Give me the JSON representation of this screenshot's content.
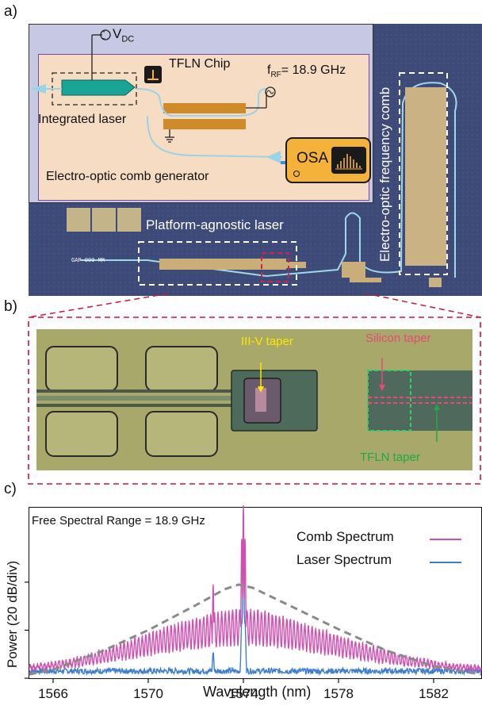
{
  "panel_a": {
    "letter": "a)",
    "v_dc": "V",
    "v_dc_sub": "DC",
    "tfln_chip": "TFLN Chip",
    "f_rf": "f",
    "f_rf_sub": "RF",
    "f_rf_value": "= 18.9 GHz",
    "integrated_laser": "Integrated laser",
    "osa": "OSA",
    "eo_comb_generator": "Electro-optic comb generator",
    "eo_frequency_comb": "Electro-optic frequency comb",
    "platform_agnostic_laser": "Platform-agnostic laser",
    "chip_id": "GAP-000 MM"
  },
  "panel_b": {
    "letter": "b)",
    "iii_v_taper": "III-V taper",
    "silicon_taper": "Silicon taper",
    "tfln_taper": "TFLN taper"
  },
  "panel_c": {
    "letter": "c)",
    "annotation": "Free Spectral Range = 18.9 GHz"
  },
  "colors": {
    "comb": "#d24fb0",
    "laser": "#3f7fd0",
    "envelope": "#8a8a8a",
    "tfln_taper": "#1fa84a",
    "silicon_taper": "#e8487a",
    "iii_v_taper": "#ffe600",
    "osa_box": "#f5b23a",
    "crop_lines": "#c8173f"
  },
  "chart_data": {
    "type": "line",
    "title": "",
    "xlabel": "Wavelength (nm)",
    "ylabel": "Power (20 dB/div)",
    "xlim": [
      1565,
      1584
    ],
    "ylim": [
      0,
      3.55
    ],
    "x_ticks": [
      1566,
      1570,
      1574,
      1578,
      1582
    ],
    "y_ticks": [
      0,
      1,
      2
    ],
    "y_ticks_labeled": false,
    "legend_position": "top-right",
    "series": [
      {
        "name": "Comb Spectrum",
        "color": "#d24fb0",
        "envelope_x": [
          1565,
          1566,
          1567,
          1568,
          1569,
          1570,
          1571,
          1572,
          1573,
          1573.6,
          1573.8,
          1574,
          1574.2,
          1574.5,
          1575,
          1576,
          1577,
          1578,
          1579,
          1580,
          1581,
          1582,
          1583,
          1584
        ],
        "envelope_y": [
          0.15,
          0.2,
          0.3,
          0.45,
          0.62,
          0.8,
          0.98,
          1.12,
          1.25,
          1.3,
          1.3,
          1.3,
          1.3,
          1.3,
          1.25,
          1.1,
          0.93,
          0.76,
          0.6,
          0.45,
          0.32,
          0.22,
          0.16,
          0.12
        ],
        "peaks_x": [
          1572.73,
          1573.93,
          1574.0,
          1574.07
        ],
        "peaks_y": [
          1.95,
          2.9,
          3.6,
          2.9
        ]
      },
      {
        "name": "Laser Spectrum",
        "color": "#3f7fd0",
        "peaks_x": [
          1572.73,
          1573.93,
          1574.0,
          1574.07
        ],
        "peaks_y": [
          0.55,
          1.2,
          3.0,
          1.2
        ],
        "baseline": 0.15
      },
      {
        "name": "",
        "color": "#8a8a8a",
        "style": "dashed",
        "x": [
          1565,
          1566,
          1568,
          1570,
          1572,
          1573.2,
          1573.8,
          1574.4,
          1576,
          1578,
          1580,
          1582,
          1584
        ],
        "y": [
          0.08,
          0.18,
          0.55,
          1.0,
          1.52,
          1.85,
          1.95,
          1.88,
          1.5,
          1.02,
          0.58,
          0.25,
          0.08
        ]
      }
    ]
  }
}
